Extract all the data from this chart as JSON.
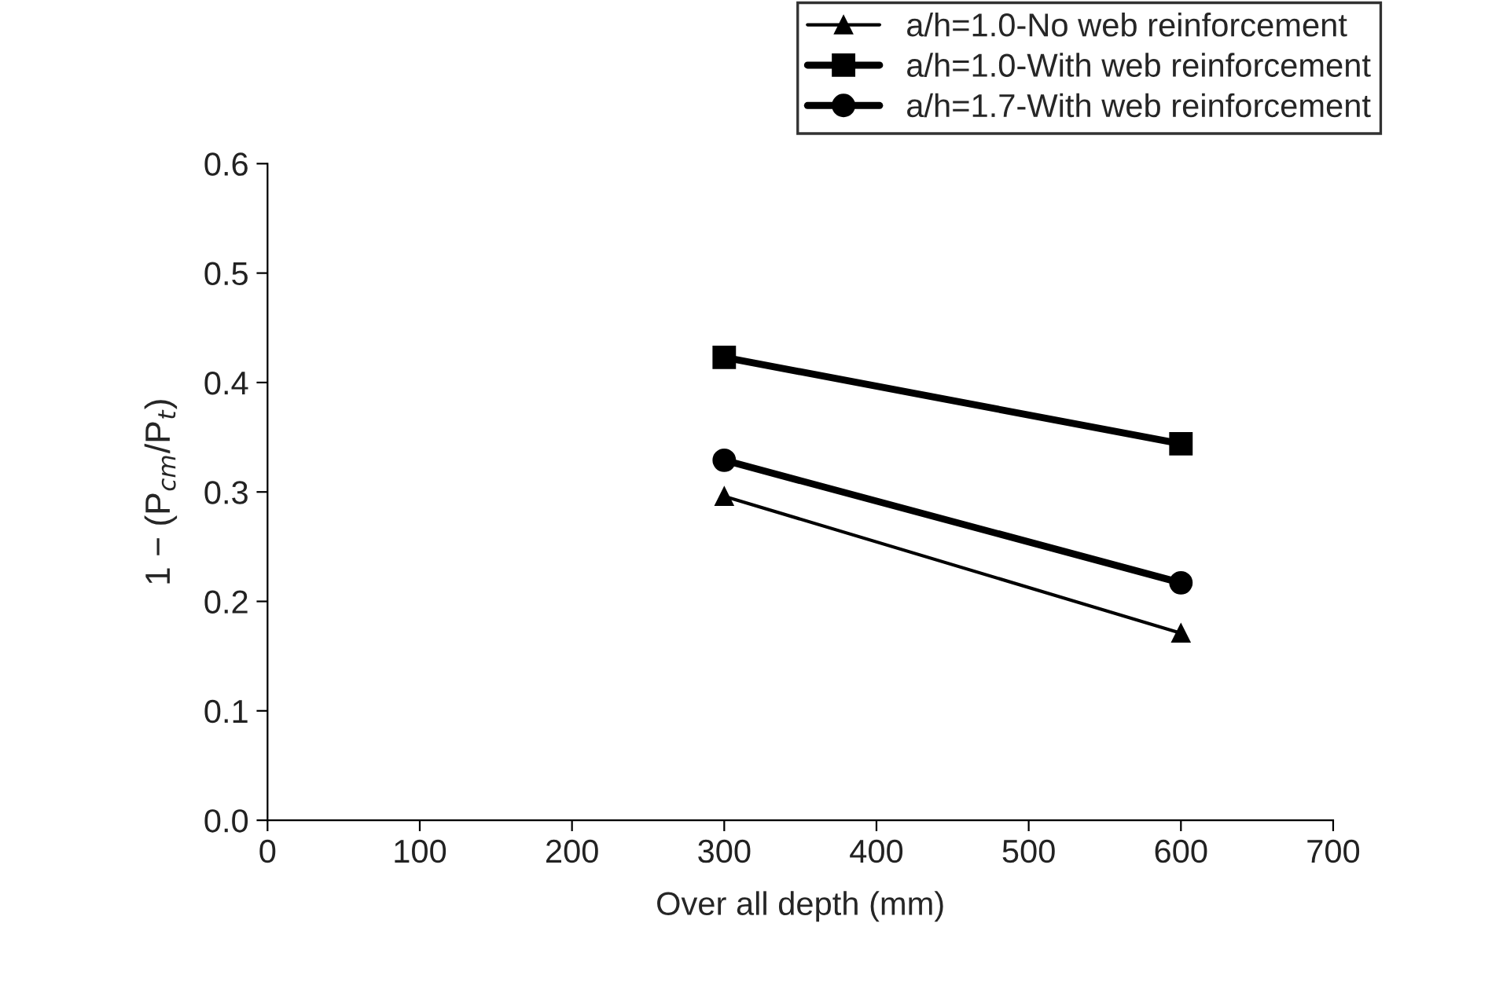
{
  "chart_data": {
    "type": "line",
    "xlabel": "Over all depth (mm)",
    "ylabel": "1 − (P$_{cm}$/P$_{t}$)",
    "x": [
      300,
      600
    ],
    "series": [
      {
        "name": "a/h=1.0-No web reinforcement",
        "color": "#000000",
        "marker": "triangle",
        "values": [
          0.296,
          0.171
        ]
      },
      {
        "name": "a/h=1.0-With web reinforcement",
        "color": "#000000",
        "marker": "square",
        "values": [
          0.423,
          0.344
        ]
      },
      {
        "name": "a/h=1.7-With web reinforcement",
        "color": "#000000",
        "marker": "circle",
        "values": [
          0.329,
          0.217
        ]
      }
    ],
    "xlim": [
      0,
      700
    ],
    "xticks": [
      0,
      100,
      200,
      300,
      400,
      500,
      600,
      700
    ],
    "ylim": [
      0,
      0.6
    ],
    "yticks": [
      {
        "value": 0,
        "label": "0.0"
      },
      {
        "value": 0.1,
        "label": "0.1"
      },
      {
        "value": 0.2,
        "label": "0.2"
      },
      {
        "value": 0.3,
        "label": "0.3"
      },
      {
        "value": 0.4,
        "label": "0.4"
      },
      {
        "value": 0.5,
        "label": "0.5"
      },
      {
        "value": 0.6,
        "label": "0.6"
      }
    ],
    "grid": false,
    "legend": "top right",
    "line_style": "solid"
  }
}
